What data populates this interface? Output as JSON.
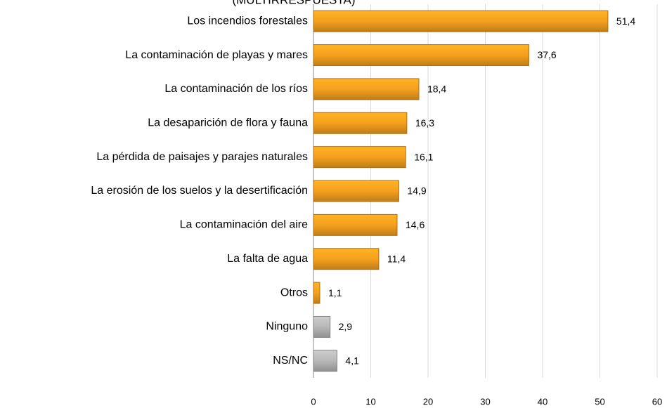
{
  "chart_data": {
    "type": "bar",
    "orientation": "horizontal",
    "title": "(MULTIRRESPUESTA)",
    "categories": [
      "Los incendios forestales",
      "La contaminación de playas y mares",
      "La contaminación de los ríos",
      "La desaparición de flora y fauna",
      "La pérdida de paisajes y parajes naturales",
      "La erosión de los suelos y la desertificación",
      "La contaminación del aire",
      "La falta de agua",
      "Otros",
      "Ninguno",
      "NS/NC"
    ],
    "values": [
      51.4,
      37.6,
      18.4,
      16.3,
      16.1,
      14.9,
      14.6,
      11.4,
      1.1,
      2.9,
      4.1
    ],
    "value_labels": [
      "51,4",
      "37,6",
      "18,4",
      "16,3",
      "16,1",
      "14,9",
      "14,6",
      "11,4",
      "1,1",
      "2,9",
      "4,1"
    ],
    "colors": [
      "#f5a01e",
      "#f5a01e",
      "#f5a01e",
      "#f5a01e",
      "#f5a01e",
      "#f5a01e",
      "#f5a01e",
      "#f5a01e",
      "#f5a01e",
      "#b8b8b8",
      "#b8b8b8"
    ],
    "xlim": [
      0,
      60
    ],
    "xticks": [
      0,
      10,
      20,
      30,
      40,
      50,
      60
    ],
    "grid": true
  }
}
